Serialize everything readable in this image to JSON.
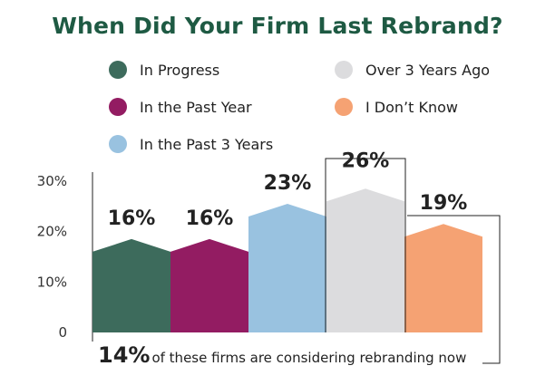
{
  "title": "When Did Your Firm Last Rebrand?",
  "legend": [
    {
      "label": "In Progress",
      "color": "#3d6b5c"
    },
    {
      "label": "In the Past Year",
      "color": "#931c62"
    },
    {
      "label": "In the Past 3 Years",
      "color": "#99c2e0"
    },
    {
      "label": "Over 3 Years Ago",
      "color": "#dcdcde"
    },
    {
      "label": "I Don’t Know",
      "color": "#f5a273"
    }
  ],
  "chart_data": {
    "type": "bar",
    "title": "When Did Your Firm Last Rebrand?",
    "categories": [
      "In Progress",
      "In the Past Year",
      "In the Past 3 Years",
      "Over 3 Years Ago",
      "I Don’t Know"
    ],
    "values": [
      16,
      16,
      23,
      26,
      19
    ],
    "value_labels": [
      "16%",
      "16%",
      "23%",
      "26%",
      "19%"
    ],
    "colors": [
      "#3d6b5c",
      "#931c62",
      "#99c2e0",
      "#dcdcde",
      "#f5a273"
    ],
    "ylim": [
      0,
      30
    ],
    "yticks": [
      0,
      10,
      20,
      30
    ],
    "ytick_labels": [
      "0",
      "10%",
      "20%",
      "30%"
    ],
    "grid": false,
    "legend_position": "top",
    "annotation": {
      "stat": "14%",
      "text": "of these firms are considering rebranding now",
      "refers_to": "Over 3 Years Ago"
    }
  }
}
